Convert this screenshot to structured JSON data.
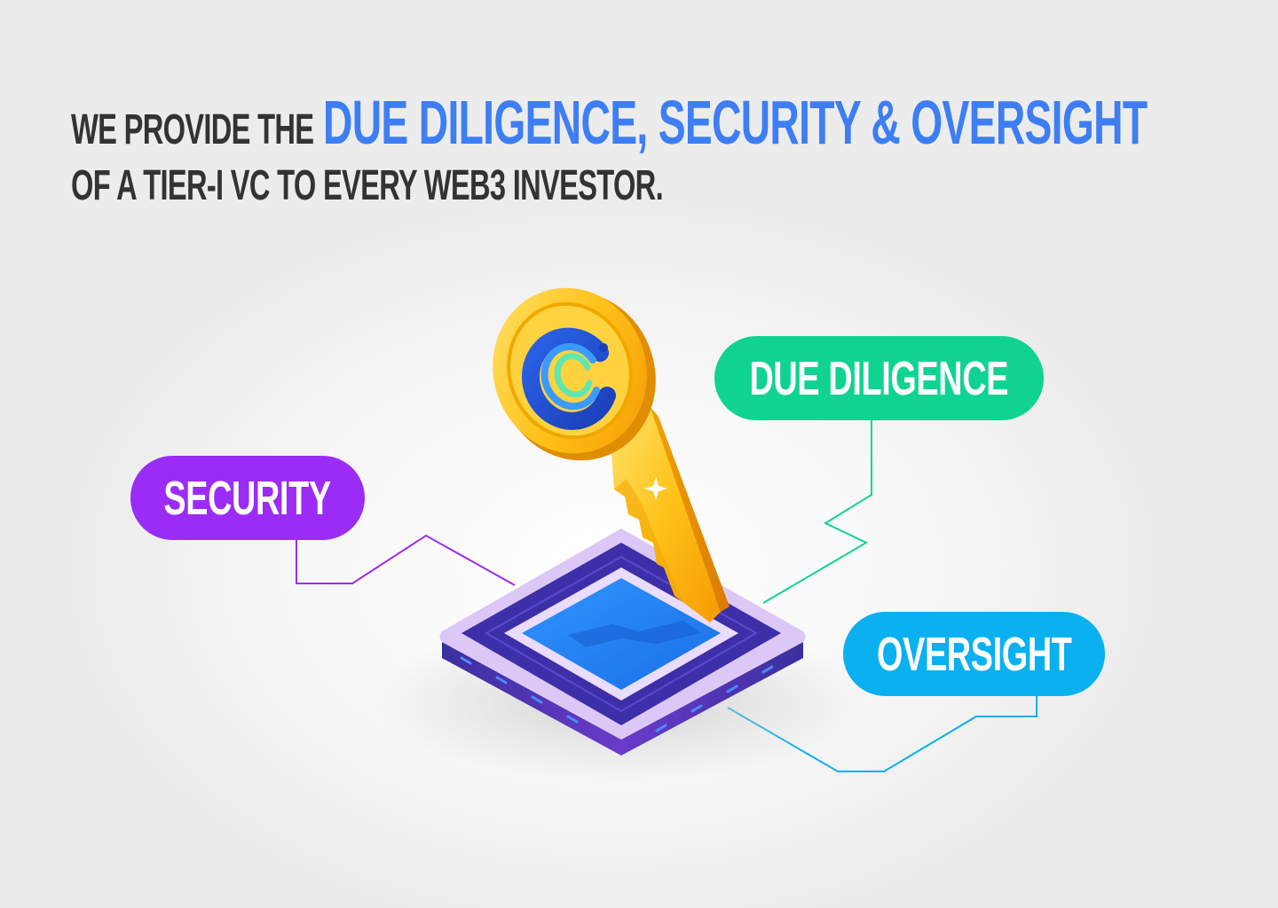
{
  "headline": {
    "lead": "WE PROVIDE THE",
    "accent": "DUE DILIGENCE, SECURITY & OVERSIGHT",
    "line2": "OF A TIER-I VC TO EVERY WEB3 INVESTOR."
  },
  "labels": {
    "due_diligence": "DUE DILIGENCE",
    "security": "SECURITY",
    "oversight": "OVERSIGHT"
  },
  "icons": {
    "key": "golden-key-icon",
    "logo": "c-logo-icon",
    "platform": "isometric-platform"
  },
  "colors": {
    "accent_blue": "#3d7ef5",
    "due_diligence": "#10d392",
    "security": "#9b2cf5",
    "oversight": "#0ab0f0",
    "text_dark": "#333333"
  }
}
